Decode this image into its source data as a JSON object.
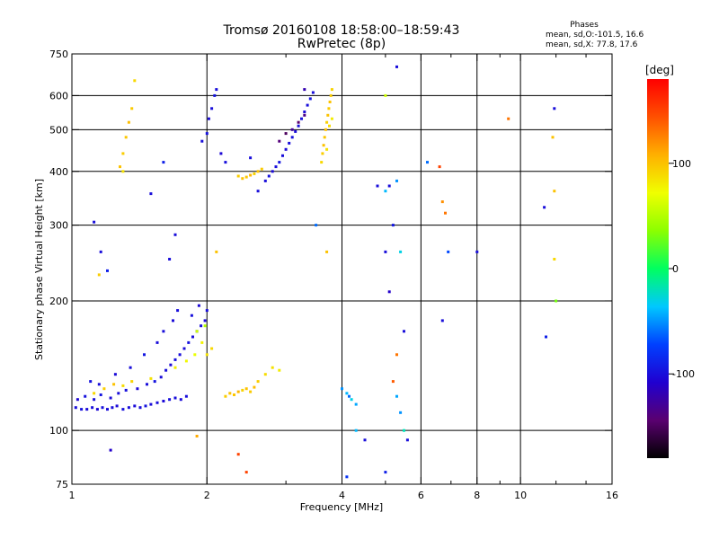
{
  "header": {
    "title": "Tromsø 20160108 18:58:00–18:59:43",
    "subtitle": "RwPretec (8p)",
    "phases_title": "Phases",
    "phases_line1": "mean, sd,O:-101.5, 16.6",
    "phases_line2": "mean, sd,X:  77.8, 17.6"
  },
  "colorbar": {
    "label": "[deg]",
    "ticks": [
      {
        "value": 100,
        "label": "100"
      },
      {
        "value": 0,
        "label": "0"
      },
      {
        "value": -100,
        "label": "-100"
      }
    ],
    "range": [
      -180,
      180
    ],
    "colors": [
      "#000000",
      "#5a0070",
      "#2000d0",
      "#0040ff",
      "#00c8ff",
      "#00ff60",
      "#8cff00",
      "#f0ff00",
      "#ffb000",
      "#ff5000",
      "#ff0000"
    ]
  },
  "chart_data": {
    "type": "scatter",
    "xlabel": "Frequency [MHz]",
    "ylabel": "Stationary phase Virtual Height [km]",
    "x_scale": "log",
    "y_scale": "log",
    "xlim": [
      1,
      16
    ],
    "ylim": [
      75,
      750
    ],
    "x_ticks": [
      {
        "value": 1,
        "label": "1"
      },
      {
        "value": 2,
        "label": "2"
      },
      {
        "value": 4,
        "label": "4"
      },
      {
        "value": 6,
        "label": "6"
      },
      {
        "value": 8,
        "label": "8"
      },
      {
        "value": 10,
        "label": "10"
      },
      {
        "value": 16,
        "label": "16"
      }
    ],
    "x_minor_ticks": [
      3,
      5,
      7,
      9,
      12,
      14
    ],
    "x_grid": [
      2,
      4,
      6,
      8,
      10
    ],
    "y_ticks": [
      {
        "value": 75,
        "label": "75"
      },
      {
        "value": 100,
        "label": "100"
      },
      {
        "value": 200,
        "label": "200"
      },
      {
        "value": 300,
        "label": "300"
      },
      {
        "value": 400,
        "label": "400"
      },
      {
        "value": 500,
        "label": "500"
      },
      {
        "value": 600,
        "label": "600"
      },
      {
        "value": 750,
        "label": "750"
      }
    ],
    "y_grid": [
      100,
      200,
      300,
      400,
      500,
      600
    ],
    "series": [
      {
        "points": [
          [
            1.02,
            113,
            -100
          ],
          [
            1.05,
            112,
            -98
          ],
          [
            1.08,
            112,
            -102
          ],
          [
            1.11,
            113,
            -100
          ],
          [
            1.14,
            112,
            -104
          ],
          [
            1.17,
            113,
            -99
          ],
          [
            1.2,
            112,
            -101
          ],
          [
            1.23,
            113,
            -100
          ],
          [
            1.26,
            114,
            -103
          ],
          [
            1.3,
            112,
            -98
          ],
          [
            1.34,
            113,
            -100
          ],
          [
            1.38,
            114,
            -102
          ],
          [
            1.42,
            113,
            -100
          ],
          [
            1.46,
            114,
            -97
          ],
          [
            1.5,
            115,
            -101
          ],
          [
            1.55,
            116,
            -100
          ],
          [
            1.6,
            117,
            -103
          ],
          [
            1.65,
            118,
            -99
          ],
          [
            1.7,
            119,
            -100
          ],
          [
            1.75,
            118,
            -102
          ],
          [
            1.8,
            120,
            -100
          ],
          [
            1.03,
            118,
            -105
          ],
          [
            1.07,
            120,
            -98
          ],
          [
            1.12,
            118,
            -100
          ],
          [
            1.16,
            121,
            -96
          ],
          [
            1.22,
            119,
            -102
          ],
          [
            1.27,
            122,
            -100
          ],
          [
            1.32,
            124,
            -99
          ],
          [
            1.4,
            125,
            -103
          ],
          [
            1.47,
            128,
            -100
          ],
          [
            1.53,
            130,
            -97
          ],
          [
            1.58,
            133,
            -101
          ],
          [
            1.62,
            138,
            -100
          ],
          [
            1.66,
            142,
            -104
          ],
          [
            1.7,
            146,
            -99
          ],
          [
            1.74,
            150,
            -100
          ],
          [
            1.78,
            155,
            -102
          ],
          [
            1.82,
            160,
            -98
          ],
          [
            1.86,
            165,
            -100
          ],
          [
            1.9,
            170,
            -101
          ],
          [
            1.94,
            175,
            -100
          ],
          [
            1.98,
            180,
            -103
          ],
          [
            1.1,
            130,
            -98
          ],
          [
            1.15,
            128,
            -100
          ],
          [
            1.25,
            135,
            -102
          ],
          [
            1.35,
            140,
            -100
          ],
          [
            1.45,
            150,
            -95
          ],
          [
            1.55,
            160,
            -100
          ],
          [
            1.6,
            170,
            -100
          ],
          [
            1.68,
            180,
            -102
          ],
          [
            1.72,
            190,
            -100
          ],
          [
            1.85,
            185,
            -99
          ],
          [
            1.92,
            195,
            -104
          ],
          [
            2.0,
            190,
            -100
          ],
          [
            1.12,
            122,
            90
          ],
          [
            1.18,
            125,
            95
          ],
          [
            1.24,
            128,
            100
          ],
          [
            1.3,
            127,
            88
          ],
          [
            1.36,
            130,
            92
          ],
          [
            1.5,
            132,
            85
          ],
          [
            1.7,
            140,
            80
          ],
          [
            1.8,
            145,
            75
          ],
          [
            1.88,
            150,
            70
          ],
          [
            1.95,
            160,
            78
          ],
          [
            2.0,
            150,
            85
          ],
          [
            2.05,
            155,
            90
          ],
          [
            1.9,
            170,
            60
          ],
          [
            1.98,
            175,
            50
          ],
          [
            2.2,
            120,
            95
          ],
          [
            2.25,
            122,
            100
          ],
          [
            2.3,
            121,
            98
          ],
          [
            2.35,
            123,
            105
          ],
          [
            2.4,
            124,
            92
          ],
          [
            2.45,
            125,
            100
          ],
          [
            2.5,
            123,
            96
          ],
          [
            2.55,
            126,
            102
          ],
          [
            2.6,
            130,
            95
          ],
          [
            2.7,
            135,
            88
          ],
          [
            2.8,
            140,
            85
          ],
          [
            2.9,
            138,
            80
          ],
          [
            2.7,
            380,
            -100
          ],
          [
            2.75,
            390,
            -98
          ],
          [
            2.8,
            400,
            -102
          ],
          [
            2.85,
            410,
            -100
          ],
          [
            2.9,
            420,
            -96
          ],
          [
            2.95,
            435,
            -100
          ],
          [
            3.0,
            450,
            -103
          ],
          [
            3.05,
            465,
            -100
          ],
          [
            3.1,
            480,
            -99
          ],
          [
            3.15,
            495,
            -101
          ],
          [
            3.2,
            510,
            -100
          ],
          [
            3.25,
            530,
            -98
          ],
          [
            3.3,
            550,
            -102
          ],
          [
            3.35,
            570,
            -100
          ],
          [
            3.4,
            590,
            -97
          ],
          [
            3.45,
            610,
            -100
          ],
          [
            2.35,
            390,
            95
          ],
          [
            2.4,
            385,
            100
          ],
          [
            2.45,
            388,
            98
          ],
          [
            2.5,
            392,
            105
          ],
          [
            2.55,
            395,
            92
          ],
          [
            2.6,
            400,
            100
          ],
          [
            2.65,
            405,
            96
          ],
          [
            2.9,
            470,
            -140
          ],
          [
            3.0,
            490,
            -150
          ],
          [
            3.1,
            500,
            -130
          ],
          [
            3.2,
            520,
            -145
          ],
          [
            3.3,
            540,
            -135
          ],
          [
            3.6,
            420,
            90
          ],
          [
            3.62,
            440,
            95
          ],
          [
            3.64,
            460,
            100
          ],
          [
            3.66,
            480,
            98
          ],
          [
            3.68,
            500,
            102
          ],
          [
            3.7,
            520,
            94
          ],
          [
            3.72,
            540,
            100
          ],
          [
            3.74,
            560,
            96
          ],
          [
            3.76,
            580,
            100
          ],
          [
            3.78,
            600,
            95
          ],
          [
            3.8,
            620,
            92
          ],
          [
            3.7,
            450,
            85
          ],
          [
            3.75,
            510,
            88
          ],
          [
            3.8,
            530,
            80
          ],
          [
            1.95,
            470,
            -100
          ],
          [
            2.0,
            490,
            -98
          ],
          [
            2.02,
            530,
            -102
          ],
          [
            2.05,
            560,
            -100
          ],
          [
            2.08,
            600,
            -97
          ],
          [
            2.1,
            620,
            -100
          ],
          [
            2.15,
            440,
            -104
          ],
          [
            2.2,
            420,
            -99
          ],
          [
            1.28,
            410,
            100
          ],
          [
            1.3,
            440,
            95
          ],
          [
            1.32,
            480,
            98
          ],
          [
            1.34,
            520,
            102
          ],
          [
            1.36,
            560,
            96
          ],
          [
            1.38,
            650,
            90
          ],
          [
            1.3,
            400,
            85
          ],
          [
            4.0,
            125,
            -50
          ],
          [
            4.1,
            122,
            -40
          ],
          [
            4.2,
            118,
            -30
          ],
          [
            4.3,
            115,
            -45
          ],
          [
            4.15,
            120,
            -60
          ],
          [
            4.8,
            370,
            -100
          ],
          [
            5.0,
            360,
            -40
          ],
          [
            5.1,
            370,
            -100
          ],
          [
            5.3,
            380,
            -50
          ],
          [
            5.2,
            300,
            -95
          ],
          [
            5.0,
            260,
            -100
          ],
          [
            5.4,
            260,
            -30
          ],
          [
            5.1,
            210,
            -110
          ],
          [
            5.5,
            170,
            -100
          ],
          [
            5.3,
            150,
            130
          ],
          [
            5.2,
            130,
            140
          ],
          [
            5.3,
            120,
            -45
          ],
          [
            5.4,
            110,
            -50
          ],
          [
            5.5,
            100,
            -20
          ],
          [
            5.6,
            95,
            -100
          ],
          [
            5.0,
            600,
            60
          ],
          [
            5.3,
            700,
            -100
          ],
          [
            6.2,
            420,
            -60
          ],
          [
            6.6,
            410,
            150
          ],
          [
            6.7,
            340,
            120
          ],
          [
            6.8,
            320,
            130
          ],
          [
            6.9,
            260,
            -70
          ],
          [
            6.7,
            180,
            -100
          ],
          [
            8.0,
            260,
            -100
          ],
          [
            9.4,
            530,
            130
          ],
          [
            11.3,
            330,
            -100
          ],
          [
            11.9,
            560,
            -100
          ],
          [
            11.8,
            480,
            100
          ],
          [
            11.9,
            360,
            100
          ],
          [
            11.9,
            250,
            90
          ],
          [
            12.0,
            200,
            30
          ],
          [
            11.4,
            165,
            -90
          ],
          [
            1.22,
            90,
            -110
          ],
          [
            1.9,
            97,
            110
          ],
          [
            2.35,
            88,
            150
          ],
          [
            2.45,
            80,
            150
          ],
          [
            1.12,
            305,
            -100
          ],
          [
            1.16,
            260,
            -100
          ],
          [
            1.2,
            235,
            -90
          ],
          [
            1.15,
            230,
            95
          ],
          [
            1.5,
            355,
            -100
          ],
          [
            1.6,
            420,
            -90
          ],
          [
            1.65,
            250,
            -100
          ],
          [
            1.7,
            285,
            -100
          ],
          [
            2.1,
            260,
            100
          ],
          [
            2.5,
            430,
            -100
          ],
          [
            2.6,
            360,
            -100
          ],
          [
            3.3,
            620,
            -120
          ],
          [
            3.5,
            300,
            -60
          ],
          [
            3.7,
            260,
            100
          ],
          [
            4.3,
            100,
            -40
          ],
          [
            4.5,
            95,
            -100
          ],
          [
            4.1,
            78,
            -80
          ],
          [
            5.0,
            80,
            -90
          ]
        ]
      }
    ]
  }
}
